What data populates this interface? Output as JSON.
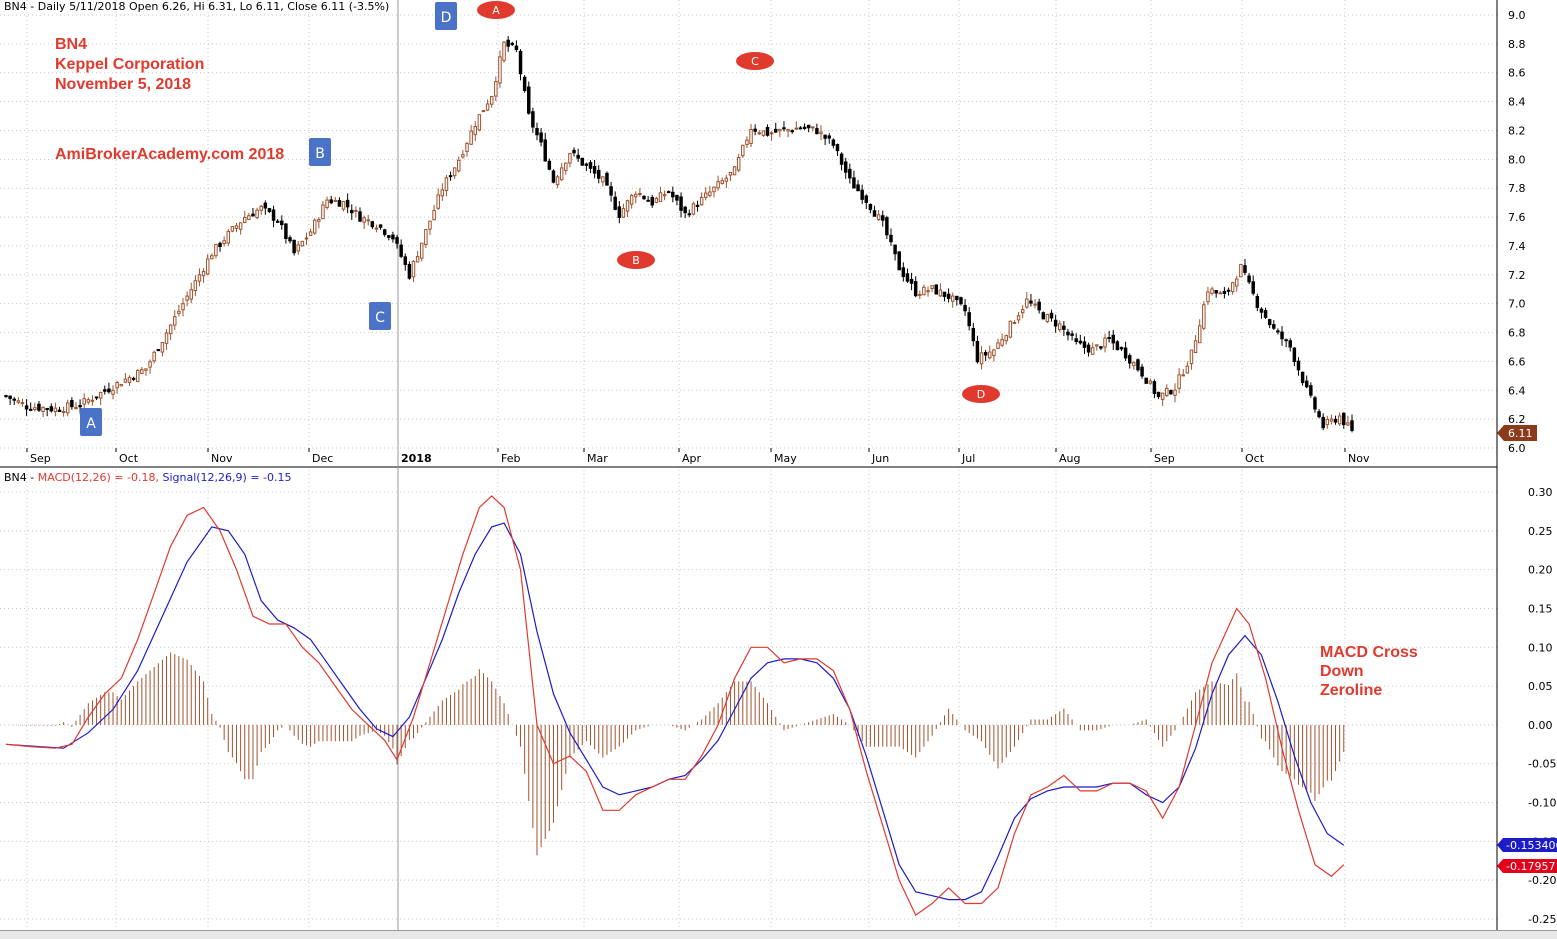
{
  "price_header": "BN4 - Daily 5/11/2018 Open 6.26, Hi 6.31, Lo 6.11, Close 6.11 (-3.5%)",
  "macd_header": {
    "prefix": "BN4 - ",
    "macd_label": "MACD(12,26) = -0.18, ",
    "signal_label": "Signal(12,26,9) = -0.15"
  },
  "annotations": {
    "title_lines": [
      "BN4",
      "Keppel Corporation",
      "November 5, 2018"
    ],
    "site": "AmiBrokerAcademy.com  2018",
    "macd_note_lines": [
      "MACD Cross",
      "Down",
      "Zeroline"
    ]
  },
  "wave_labels": {
    "boxes": [
      "A",
      "B",
      "C",
      "D"
    ],
    "ovals": [
      "A",
      "C",
      "B",
      "D"
    ]
  },
  "colors": {
    "up_candle": "#a0522d",
    "down_candle": "#000000",
    "macd": "#e03a2e",
    "signal": "#1c1cc8",
    "histogram": "#a0522d",
    "box_fill": "#4a73c8",
    "oval_fill": "#e03a2e",
    "grid": "#c8c8c8"
  },
  "chart_data": [
    {
      "type": "candlestick",
      "title": "BN4 - Daily 5/11/2018 Open 6.26, Hi 6.31, Lo 6.11, Close 6.11 (-3.5%)",
      "x_tick_labels": [
        "Sep",
        "Oct",
        "Nov",
        "Dec",
        "2018",
        "Feb",
        "Mar",
        "Apr",
        "May",
        "Jun",
        "Jul",
        "Aug",
        "Sep",
        "Oct",
        "Nov"
      ],
      "y_ticks": [
        "9.0",
        "8.8",
        "8.6",
        "8.4",
        "8.2",
        "8.0",
        "7.8",
        "7.6",
        "7.4",
        "7.2",
        "7.0",
        "6.8",
        "6.6",
        "6.4",
        "6.2",
        "6.0"
      ],
      "ylim": [
        6.0,
        9.0
      ],
      "last_close": "6.11",
      "close_path": [
        [
          0,
          6.36
        ],
        [
          5,
          6.29
        ],
        [
          12,
          6.27
        ],
        [
          18,
          6.3
        ],
        [
          23,
          6.38
        ],
        [
          28,
          6.46
        ],
        [
          34,
          6.55
        ],
        [
          38,
          6.75
        ],
        [
          42,
          6.95
        ],
        [
          46,
          7.15
        ],
        [
          50,
          7.35
        ],
        [
          54,
          7.48
        ],
        [
          58,
          7.6
        ],
        [
          62,
          7.66
        ],
        [
          66,
          7.58
        ],
        [
          70,
          7.35
        ],
        [
          74,
          7.5
        ],
        [
          78,
          7.72
        ],
        [
          82,
          7.7
        ],
        [
          86,
          7.6
        ],
        [
          90,
          7.55
        ],
        [
          94,
          7.46
        ],
        [
          98,
          7.2
        ],
        [
          102,
          7.5
        ],
        [
          106,
          7.8
        ],
        [
          110,
          8.0
        ],
        [
          114,
          8.25
        ],
        [
          118,
          8.45
        ],
        [
          121,
          8.8
        ],
        [
          124,
          8.75
        ],
        [
          127,
          8.3
        ],
        [
          130,
          8.1
        ],
        [
          133,
          7.85
        ],
        [
          137,
          8.05
        ],
        [
          141,
          7.95
        ],
        [
          145,
          7.85
        ],
        [
          149,
          7.62
        ],
        [
          153,
          7.78
        ],
        [
          157,
          7.7
        ],
        [
          161,
          7.78
        ],
        [
          165,
          7.62
        ],
        [
          169,
          7.72
        ],
        [
          173,
          7.82
        ],
        [
          177,
          7.92
        ],
        [
          181,
          8.22
        ],
        [
          185,
          8.18
        ],
        [
          189,
          8.2
        ],
        [
          193,
          8.22
        ],
        [
          197,
          8.2
        ],
        [
          201,
          8.1
        ],
        [
          205,
          7.85
        ],
        [
          209,
          7.72
        ],
        [
          213,
          7.55
        ],
        [
          217,
          7.25
        ],
        [
          221,
          7.08
        ],
        [
          225,
          7.1
        ],
        [
          229,
          7.05
        ],
        [
          233,
          6.95
        ],
        [
          236,
          6.62
        ],
        [
          240,
          6.68
        ],
        [
          244,
          6.85
        ],
        [
          248,
          7.02
        ],
        [
          252,
          6.92
        ],
        [
          256,
          6.85
        ],
        [
          260,
          6.72
        ],
        [
          264,
          6.68
        ],
        [
          268,
          6.75
        ],
        [
          272,
          6.65
        ],
        [
          276,
          6.52
        ],
        [
          280,
          6.35
        ],
        [
          284,
          6.42
        ],
        [
          288,
          6.65
        ],
        [
          292,
          7.1
        ],
        [
          296,
          7.05
        ],
        [
          300,
          7.25
        ],
        [
          304,
          7.0
        ],
        [
          308,
          6.82
        ],
        [
          312,
          6.7
        ],
        [
          316,
          6.4
        ],
        [
          320,
          6.15
        ],
        [
          324,
          6.22
        ],
        [
          327,
          6.11
        ]
      ]
    },
    {
      "type": "line",
      "title": "BN4 - MACD(12,26) = -0.18, Signal(12,26,9) = -0.15",
      "y_ticks": [
        "0.30",
        "0.25",
        "0.20",
        "0.15",
        "0.10",
        "0.05",
        "0.00",
        "-0.05",
        "-0.10",
        "-0.15",
        "-0.20",
        "-0.25"
      ],
      "ylim": [
        -0.25,
        0.3
      ],
      "series": [
        {
          "name": "MACD(12,26)",
          "last_value": "-0.17957",
          "values": [
            [
              0,
              -0.025
            ],
            [
              6,
              -0.028
            ],
            [
              12,
              -0.03
            ],
            [
              16,
              -0.025
            ],
            [
              20,
              0.01
            ],
            [
              24,
              0.04
            ],
            [
              28,
              0.06
            ],
            [
              32,
              0.11
            ],
            [
              36,
              0.17
            ],
            [
              40,
              0.23
            ],
            [
              44,
              0.27
            ],
            [
              48,
              0.28
            ],
            [
              52,
              0.25
            ],
            [
              56,
              0.2
            ],
            [
              60,
              0.14
            ],
            [
              64,
              0.13
            ],
            [
              68,
              0.13
            ],
            [
              72,
              0.1
            ],
            [
              76,
              0.08
            ],
            [
              80,
              0.05
            ],
            [
              84,
              0.02
            ],
            [
              88,
              0.0
            ],
            [
              92,
              -0.02
            ],
            [
              95,
              -0.045
            ],
            [
              99,
              0.01
            ],
            [
              103,
              0.08
            ],
            [
              107,
              0.15
            ],
            [
              111,
              0.22
            ],
            [
              115,
              0.28
            ],
            [
              118,
              0.295
            ],
            [
              121,
              0.28
            ],
            [
              125,
              0.2
            ],
            [
              129,
              0.0
            ],
            [
              133,
              -0.05
            ],
            [
              137,
              -0.04
            ],
            [
              141,
              -0.06
            ],
            [
              145,
              -0.11
            ],
            [
              149,
              -0.11
            ],
            [
              153,
              -0.09
            ],
            [
              157,
              -0.08
            ],
            [
              161,
              -0.07
            ],
            [
              165,
              -0.07
            ],
            [
              169,
              -0.04
            ],
            [
              173,
              0.0
            ],
            [
              177,
              0.06
            ],
            [
              181,
              0.1
            ],
            [
              185,
              0.1
            ],
            [
              189,
              0.08
            ],
            [
              193,
              0.085
            ],
            [
              197,
              0.085
            ],
            [
              201,
              0.07
            ],
            [
              205,
              0.02
            ],
            [
              209,
              -0.06
            ],
            [
              213,
              -0.13
            ],
            [
              217,
              -0.2
            ],
            [
              221,
              -0.245
            ],
            [
              225,
              -0.23
            ],
            [
              229,
              -0.21
            ],
            [
              233,
              -0.23
            ],
            [
              237,
              -0.23
            ],
            [
              241,
              -0.21
            ],
            [
              245,
              -0.14
            ],
            [
              249,
              -0.09
            ],
            [
              253,
              -0.08
            ],
            [
              257,
              -0.065
            ],
            [
              261,
              -0.085
            ],
            [
              265,
              -0.085
            ],
            [
              269,
              -0.075
            ],
            [
              273,
              -0.075
            ],
            [
              277,
              -0.085
            ],
            [
              281,
              -0.12
            ],
            [
              285,
              -0.08
            ],
            [
              289,
              0.0
            ],
            [
              293,
              0.08
            ],
            [
              296,
              0.115
            ],
            [
              299,
              0.15
            ],
            [
              302,
              0.13
            ],
            [
              306,
              0.06
            ],
            [
              310,
              -0.03
            ],
            [
              314,
              -0.11
            ],
            [
              318,
              -0.18
            ],
            [
              322,
              -0.195
            ],
            [
              325,
              -0.18
            ]
          ]
        },
        {
          "name": "Signal(12,26,9)",
          "last_value": "-0.153406",
          "values": [
            [
              0,
              -0.025
            ],
            [
              8,
              -0.028
            ],
            [
              14,
              -0.03
            ],
            [
              20,
              -0.01
            ],
            [
              26,
              0.02
            ],
            [
              32,
              0.07
            ],
            [
              38,
              0.14
            ],
            [
              44,
              0.21
            ],
            [
              50,
              0.255
            ],
            [
              54,
              0.25
            ],
            [
              58,
              0.22
            ],
            [
              62,
              0.16
            ],
            [
              66,
              0.135
            ],
            [
              70,
              0.125
            ],
            [
              74,
              0.11
            ],
            [
              78,
              0.08
            ],
            [
              82,
              0.05
            ],
            [
              86,
              0.02
            ],
            [
              90,
              -0.005
            ],
            [
              94,
              -0.015
            ],
            [
              98,
              0.01
            ],
            [
              102,
              0.06
            ],
            [
              106,
              0.11
            ],
            [
              110,
              0.17
            ],
            [
              114,
              0.22
            ],
            [
              118,
              0.255
            ],
            [
              121,
              0.26
            ],
            [
              125,
              0.22
            ],
            [
              129,
              0.12
            ],
            [
              133,
              0.04
            ],
            [
              137,
              -0.01
            ],
            [
              141,
              -0.045
            ],
            [
              145,
              -0.08
            ],
            [
              149,
              -0.09
            ],
            [
              153,
              -0.085
            ],
            [
              157,
              -0.08
            ],
            [
              161,
              -0.07
            ],
            [
              165,
              -0.065
            ],
            [
              169,
              -0.045
            ],
            [
              173,
              -0.02
            ],
            [
              177,
              0.02
            ],
            [
              181,
              0.06
            ],
            [
              185,
              0.08
            ],
            [
              189,
              0.085
            ],
            [
              193,
              0.085
            ],
            [
              197,
              0.08
            ],
            [
              201,
              0.06
            ],
            [
              205,
              0.02
            ],
            [
              209,
              -0.04
            ],
            [
              213,
              -0.11
            ],
            [
              217,
              -0.18
            ],
            [
              221,
              -0.215
            ],
            [
              225,
              -0.22
            ],
            [
              229,
              -0.225
            ],
            [
              233,
              -0.225
            ],
            [
              237,
              -0.215
            ],
            [
              241,
              -0.17
            ],
            [
              245,
              -0.12
            ],
            [
              249,
              -0.095
            ],
            [
              253,
              -0.085
            ],
            [
              257,
              -0.08
            ],
            [
              261,
              -0.08
            ],
            [
              265,
              -0.08
            ],
            [
              269,
              -0.075
            ],
            [
              273,
              -0.075
            ],
            [
              277,
              -0.09
            ],
            [
              281,
              -0.1
            ],
            [
              285,
              -0.08
            ],
            [
              289,
              -0.03
            ],
            [
              293,
              0.04
            ],
            [
              297,
              0.09
            ],
            [
              301,
              0.115
            ],
            [
              305,
              0.09
            ],
            [
              309,
              0.03
            ],
            [
              313,
              -0.04
            ],
            [
              317,
              -0.1
            ],
            [
              321,
              -0.14
            ],
            [
              325,
              -0.155
            ]
          ]
        }
      ]
    }
  ]
}
